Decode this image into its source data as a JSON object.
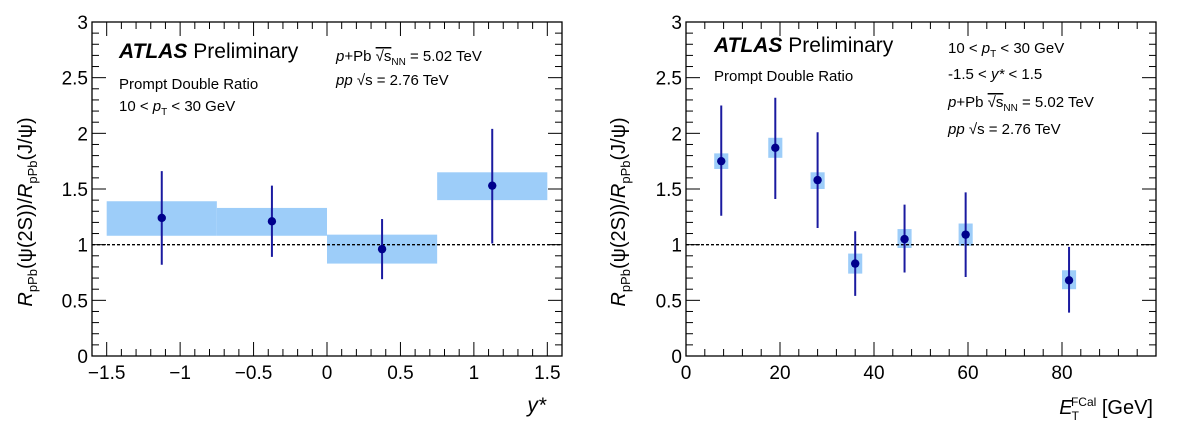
{
  "chart_data": [
    {
      "type": "scatter",
      "title": "",
      "atlas_label": "ATLAS",
      "atlas_suffix": "Preliminary",
      "info_left": [
        "Prompt Double Ratio",
        "10 < p_T < 30 GeV"
      ],
      "info_right": [
        "p+Pb √s_NN = 5.02 TeV",
        "pp √s = 2.76 TeV"
      ],
      "xlabel": "y*",
      "ylabel": "R_pPb(ψ(2S))/R_pPb(J/ψ)",
      "xlim": [
        -1.6,
        1.6
      ],
      "ylim": [
        0,
        3
      ],
      "xticks": [
        "−1.5",
        "−1",
        "−0.5",
        "0",
        "0.5",
        "1",
        "1.5"
      ],
      "yticks": [
        "0",
        "0.5",
        "1",
        "1.5",
        "2",
        "2.5",
        "3"
      ],
      "reference_line": 1,
      "points": [
        {
          "x": -1.125,
          "y": 1.24,
          "stat_low": 0.82,
          "stat_high": 1.66,
          "sys_xlow": -1.5,
          "sys_xhigh": -0.75,
          "sys_low": 1.08,
          "sys_high": 1.39
        },
        {
          "x": -0.375,
          "y": 1.21,
          "stat_low": 0.89,
          "stat_high": 1.53,
          "sys_xlow": -0.75,
          "sys_xhigh": 0.0,
          "sys_low": 1.08,
          "sys_high": 1.33
        },
        {
          "x": 0.375,
          "y": 0.96,
          "stat_low": 0.69,
          "stat_high": 1.23,
          "sys_xlow": 0.0,
          "sys_xhigh": 0.75,
          "sys_low": 0.83,
          "sys_high": 1.09
        },
        {
          "x": 1.125,
          "y": 1.53,
          "stat_low": 1.01,
          "stat_high": 2.04,
          "sys_xlow": 0.75,
          "sys_xhigh": 1.5,
          "sys_low": 1.4,
          "sys_high": 1.65
        }
      ]
    },
    {
      "type": "scatter",
      "title": "",
      "atlas_label": "ATLAS",
      "atlas_suffix": "Preliminary",
      "info_left": [
        "Prompt Double Ratio"
      ],
      "info_right": [
        "10 < p_T < 30 GeV",
        "-1.5 < y* < 1.5",
        "p+Pb √s_NN = 5.02 TeV",
        "pp √s = 2.76 TeV"
      ],
      "xlabel": "E_T^FCal [GeV]",
      "ylabel": "R_pPb(ψ(2S))/R_pPb(J/ψ)",
      "xlim": [
        0,
        100
      ],
      "ylim": [
        0,
        3
      ],
      "xticks": [
        "0",
        "20",
        "40",
        "60",
        "80"
      ],
      "yticks": [
        "0",
        "0.5",
        "1",
        "1.5",
        "2",
        "2.5",
        "3"
      ],
      "reference_line": 1,
      "points": [
        {
          "x": 7.5,
          "y": 1.75,
          "stat_low": 1.26,
          "stat_high": 2.25,
          "sys_xlow": 6.0,
          "sys_xhigh": 9.0,
          "sys_low": 1.68,
          "sys_high": 1.82
        },
        {
          "x": 19.0,
          "y": 1.87,
          "stat_low": 1.41,
          "stat_high": 2.32,
          "sys_xlow": 17.5,
          "sys_xhigh": 20.5,
          "sys_low": 1.78,
          "sys_high": 1.96
        },
        {
          "x": 28.0,
          "y": 1.58,
          "stat_low": 1.15,
          "stat_high": 2.01,
          "sys_xlow": 26.5,
          "sys_xhigh": 29.5,
          "sys_low": 1.5,
          "sys_high": 1.65
        },
        {
          "x": 36.0,
          "y": 0.83,
          "stat_low": 0.54,
          "stat_high": 1.12,
          "sys_xlow": 34.5,
          "sys_xhigh": 37.5,
          "sys_low": 0.74,
          "sys_high": 0.92
        },
        {
          "x": 46.5,
          "y": 1.05,
          "stat_low": 0.75,
          "stat_high": 1.36,
          "sys_xlow": 45.0,
          "sys_xhigh": 48.0,
          "sys_low": 0.97,
          "sys_high": 1.14
        },
        {
          "x": 59.5,
          "y": 1.09,
          "stat_low": 0.71,
          "stat_high": 1.47,
          "sys_xlow": 58.0,
          "sys_xhigh": 61.0,
          "sys_low": 0.99,
          "sys_high": 1.19
        },
        {
          "x": 81.5,
          "y": 0.68,
          "stat_low": 0.39,
          "stat_high": 0.98,
          "sys_xlow": 80.0,
          "sys_xhigh": 83.0,
          "sys_low": 0.6,
          "sys_high": 0.77
        }
      ]
    }
  ]
}
